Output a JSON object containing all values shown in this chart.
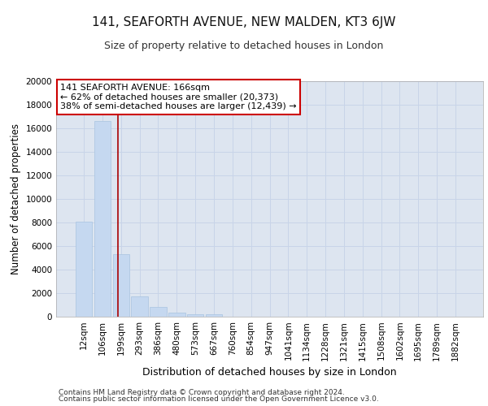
{
  "title_line1": "141, SEAFORTH AVENUE, NEW MALDEN, KT3 6JW",
  "title_line2": "Size of property relative to detached houses in London",
  "xlabel": "Distribution of detached houses by size in London",
  "ylabel": "Number of detached properties",
  "categories": [
    "12sqm",
    "106sqm",
    "199sqm",
    "293sqm",
    "386sqm",
    "480sqm",
    "573sqm",
    "667sqm",
    "760sqm",
    "854sqm",
    "947sqm",
    "1041sqm",
    "1134sqm",
    "1228sqm",
    "1321sqm",
    "1415sqm",
    "1508sqm",
    "1602sqm",
    "1695sqm",
    "1789sqm",
    "1882sqm"
  ],
  "values": [
    8100,
    16600,
    5300,
    1750,
    800,
    350,
    200,
    175,
    0,
    0,
    0,
    0,
    0,
    0,
    0,
    0,
    0,
    0,
    0,
    0,
    0
  ],
  "bar_color": "#c5d8f0",
  "bar_edge_color": "#a8c4e0",
  "grid_color": "#c8d4e8",
  "background_color": "#dde5f0",
  "vline_x": 1.85,
  "vline_color": "#aa0000",
  "annotation_text": "141 SEAFORTH AVENUE: 166sqm\n← 62% of detached houses are smaller (20,373)\n38% of semi-detached houses are larger (12,439) →",
  "annotation_box_facecolor": "#ffffff",
  "annotation_box_edgecolor": "#cc0000",
  "ylim": [
    0,
    20000
  ],
  "yticks": [
    0,
    2000,
    4000,
    6000,
    8000,
    10000,
    12000,
    14000,
    16000,
    18000,
    20000
  ],
  "footer_line1": "Contains HM Land Registry data © Crown copyright and database right 2024.",
  "footer_line2": "Contains public sector information licensed under the Open Government Licence v3.0.",
  "title1_fontsize": 11,
  "title2_fontsize": 9,
  "tick_fontsize": 7.5,
  "ylabel_fontsize": 8.5,
  "xlabel_fontsize": 9,
  "annot_fontsize": 8,
  "footer_fontsize": 6.5
}
